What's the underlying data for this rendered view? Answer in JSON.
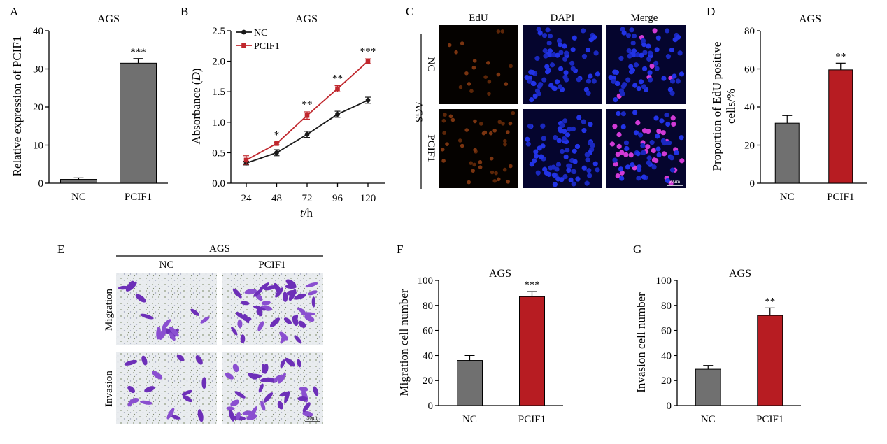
{
  "panels": {
    "A": {
      "letter": "A",
      "chart_data": {
        "type": "bar",
        "title": "AGS",
        "categories": [
          "NC",
          "PCIF1"
        ],
        "values": [
          1,
          31.5
        ],
        "errors": [
          0.4,
          1.2
        ],
        "significance": [
          "",
          "***"
        ],
        "ylabel": "Relative expression of PCIF1",
        "xlabel": "",
        "ylim": [
          0,
          40
        ],
        "yticks": [
          0,
          10,
          20,
          30,
          40
        ],
        "colors": [
          "#707070",
          "#707070"
        ]
      }
    },
    "B": {
      "letter": "B",
      "chart_data": {
        "type": "line",
        "title": "AGS",
        "x": [
          24,
          48,
          72,
          96,
          120
        ],
        "series": [
          {
            "name": "NC",
            "values": [
              0.33,
              0.5,
              0.8,
              1.13,
              1.36
            ],
            "errors": [
              0.03,
              0.05,
              0.05,
              0.05,
              0.05
            ],
            "color": "#1a1a1a"
          },
          {
            "name": "PCIF1",
            "values": [
              0.38,
              0.65,
              1.11,
              1.55,
              2.0
            ],
            "errors": [
              0.07,
              0.02,
              0.06,
              0.05,
              0.04
            ],
            "color": "#c0272d"
          }
        ],
        "significance": [
          "",
          "*",
          "**",
          "**",
          "***"
        ],
        "ylabel_main": "Absorbance (",
        "ylabel_italic": "D",
        "ylabel_end": ")",
        "xlabel_italic": "t",
        "xlabel_unit": "/h",
        "ylim": [
          0,
          2.5
        ],
        "yticks": [
          "0.0",
          "0.5",
          "1.0",
          "1.5",
          "2.0",
          "2.5"
        ],
        "legend_position": "top-left"
      }
    },
    "C": {
      "letter": "C",
      "columns": [
        "EdU",
        "DAPI",
        "Merge"
      ],
      "group": "AGS",
      "rows": [
        "NC",
        "PCIF1"
      ],
      "scalebar": "50μm"
    },
    "D": {
      "letter": "D",
      "chart_data": {
        "type": "bar",
        "title": "AGS",
        "categories": [
          "NC",
          "PCIF1"
        ],
        "values": [
          31.5,
          59.5
        ],
        "errors": [
          4,
          3.5
        ],
        "significance": [
          "",
          "**"
        ],
        "ylabel_line1": "Proportion of EdU positive",
        "ylabel_line2": "cells/%",
        "ylim": [
          0,
          80
        ],
        "yticks": [
          0,
          20,
          40,
          60,
          80
        ],
        "colors": [
          "#707070",
          "#b71c22"
        ]
      }
    },
    "E": {
      "letter": "E",
      "group": "AGS",
      "columns": [
        "NC",
        "PCIF1"
      ],
      "rows": [
        "Migration",
        "Invasion"
      ],
      "scalebar": "50μm"
    },
    "F": {
      "letter": "F",
      "chart_data": {
        "type": "bar",
        "title": "AGS",
        "categories": [
          "NC",
          "PCIF1"
        ],
        "values": [
          36,
          87
        ],
        "errors": [
          4,
          4
        ],
        "significance": [
          "",
          "***"
        ],
        "ylabel": "Migration cell number",
        "ylim": [
          0,
          100
        ],
        "yticks": [
          0,
          20,
          40,
          60,
          80,
          100
        ],
        "colors": [
          "#707070",
          "#b71c22"
        ]
      }
    },
    "G": {
      "letter": "G",
      "chart_data": {
        "type": "bar",
        "title": "AGS",
        "categories": [
          "NC",
          "PCIF1"
        ],
        "values": [
          29,
          72
        ],
        "errors": [
          3,
          6
        ],
        "significance": [
          "",
          "**"
        ],
        "ylabel": "Invasion cell number",
        "ylim": [
          0,
          100
        ],
        "yticks": [
          0,
          20,
          40,
          60,
          80,
          100
        ],
        "colors": [
          "#707070",
          "#b71c22"
        ]
      }
    }
  }
}
